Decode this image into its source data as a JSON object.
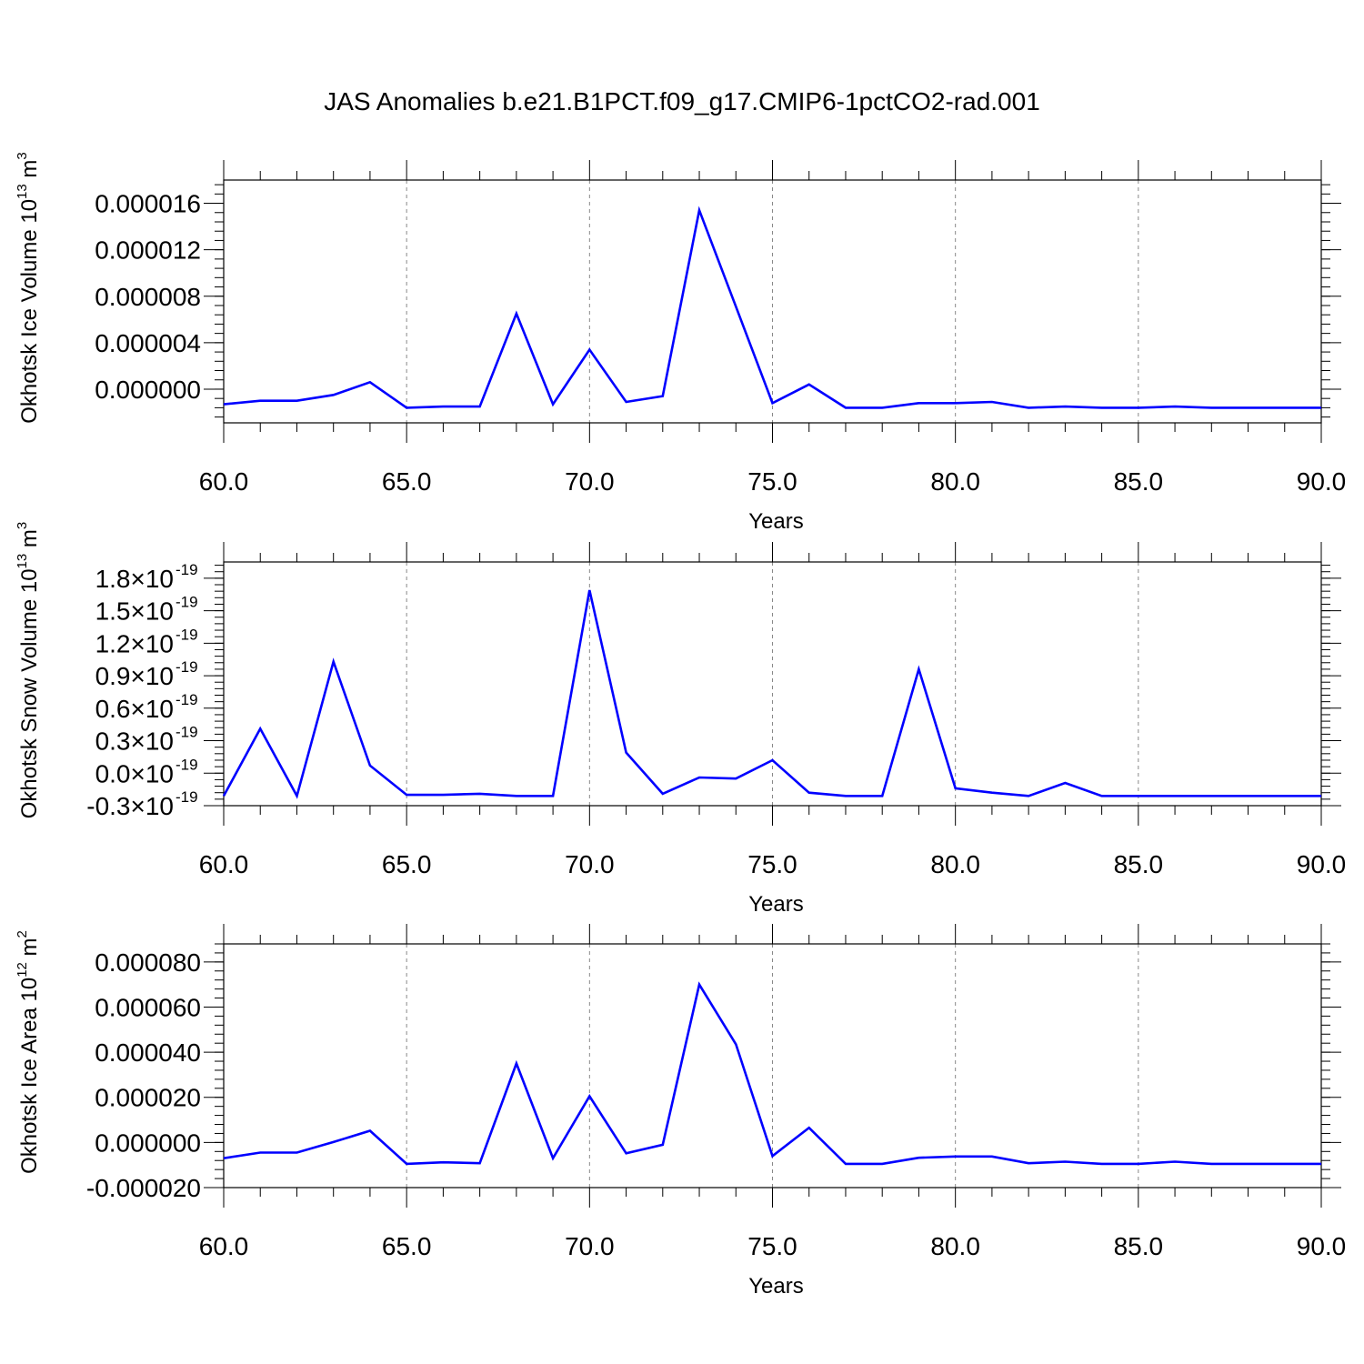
{
  "title": "JAS Anomalies b.e21.B1PCT.f09_g17.CMIP6-1pctCO2-rad.001",
  "line_color": "#0000ff",
  "chart_data": [
    {
      "type": "line",
      "ylabel": "Okhotsk Ice Volume",
      "unit_base": "10",
      "unit_exp": "13",
      "unit_sym": "m",
      "unit_pow": "3",
      "xlabel": "Years",
      "xlim": [
        60,
        90
      ],
      "ylim": [
        -2.9e-06,
        1.8e-05
      ],
      "x_ticks": [
        60,
        65,
        70,
        75,
        80,
        85,
        90
      ],
      "x_tick_labels": [
        "60.0",
        "65.0",
        "70.0",
        "75.0",
        "80.0",
        "85.0",
        "90.0"
      ],
      "y_ticks": [
        0,
        4e-06,
        8e-06,
        1.2e-05,
        1.6e-05
      ],
      "y_tick_labels": [
        "0.000000",
        "0.000004",
        "0.000008",
        "0.000012",
        "0.000016"
      ],
      "y_tick_exps": [],
      "x": [
        60,
        61,
        62,
        63,
        64,
        65,
        66,
        67,
        68,
        69,
        70,
        71,
        72,
        73,
        74,
        75,
        76,
        77,
        78,
        79,
        80,
        81,
        82,
        83,
        84,
        85,
        86,
        87,
        88,
        89,
        90
      ],
      "values": [
        -1.3e-06,
        -1e-06,
        -1e-06,
        -5e-07,
        6e-07,
        -1.6e-06,
        -1.5e-06,
        -1.5e-06,
        6.5e-06,
        -1.3e-06,
        3.4e-06,
        -1.1e-06,
        -6e-07,
        1.54e-05,
        7.1e-06,
        -1.2e-06,
        4e-07,
        -1.6e-06,
        -1.6e-06,
        -1.2e-06,
        -1.2e-06,
        -1.1e-06,
        -1.6e-06,
        -1.5e-06,
        -1.6e-06,
        -1.6e-06,
        -1.5e-06,
        -1.6e-06,
        -1.6e-06,
        -1.6e-06,
        -1.6e-06
      ]
    },
    {
      "type": "line",
      "ylabel": "Okhotsk Snow Volume",
      "unit_base": "10",
      "unit_exp": "13",
      "unit_sym": "m",
      "unit_pow": "3",
      "xlabel": "Years",
      "xlim": [
        60,
        90
      ],
      "ylim": [
        -0.3,
        1.95
      ],
      "x_ticks": [
        60,
        65,
        70,
        75,
        80,
        85,
        90
      ],
      "x_tick_labels": [
        "60.0",
        "65.0",
        "70.0",
        "75.0",
        "80.0",
        "85.0",
        "90.0"
      ],
      "y_ticks": [
        -0.3,
        0.0,
        0.3,
        0.6,
        0.9,
        1.2,
        1.5,
        1.8
      ],
      "y_tick_labels": [
        "-0.3×10",
        "0.0×10",
        "0.3×10",
        "0.6×10",
        "0.9×10",
        "1.2×10",
        "1.5×10",
        "1.8×10"
      ],
      "y_tick_exps": [
        "-19",
        "-19",
        "-19",
        "-19",
        "-19",
        "-19",
        "-19",
        "-19"
      ],
      "x": [
        60,
        61,
        62,
        63,
        64,
        65,
        66,
        67,
        68,
        69,
        70,
        71,
        72,
        73,
        74,
        75,
        76,
        77,
        78,
        79,
        80,
        81,
        82,
        83,
        84,
        85,
        86,
        87,
        88,
        89,
        90
      ],
      "values": [
        -0.21,
        0.41,
        -0.21,
        1.03,
        0.07,
        -0.2,
        -0.2,
        -0.19,
        -0.21,
        -0.21,
        1.69,
        0.19,
        -0.19,
        -0.04,
        -0.05,
        0.12,
        -0.18,
        -0.21,
        -0.21,
        0.96,
        -0.14,
        -0.18,
        -0.21,
        -0.09,
        -0.21,
        -0.21,
        -0.21,
        -0.21,
        -0.21,
        -0.21,
        -0.21
      ]
    },
    {
      "type": "line",
      "ylabel": "Okhotsk Ice Area",
      "unit_base": "10",
      "unit_exp": "12",
      "unit_sym": "m",
      "unit_pow": "2",
      "xlabel": "Years",
      "xlim": [
        60,
        90
      ],
      "ylim": [
        -2e-05,
        8.8e-05
      ],
      "x_ticks": [
        60,
        65,
        70,
        75,
        80,
        85,
        90
      ],
      "x_tick_labels": [
        "60.0",
        "65.0",
        "70.0",
        "75.0",
        "80.0",
        "85.0",
        "90.0"
      ],
      "y_ticks": [
        -2e-05,
        0,
        2e-05,
        4e-05,
        6e-05,
        8e-05
      ],
      "y_tick_labels": [
        "-0.000020",
        "0.000000",
        "0.000020",
        "0.000040",
        "0.000060",
        "0.000080"
      ],
      "y_tick_exps": [],
      "x": [
        60,
        61,
        62,
        63,
        64,
        65,
        66,
        67,
        68,
        69,
        70,
        71,
        72,
        73,
        74,
        75,
        76,
        77,
        78,
        79,
        80,
        81,
        82,
        83,
        84,
        85,
        86,
        87,
        88,
        89,
        90
      ],
      "values": [
        -7e-06,
        -4.5e-06,
        -4.5e-06,
        2e-07,
        5.2e-06,
        -9.5e-06,
        -8.8e-06,
        -9.2e-06,
        3.5e-05,
        -7e-06,
        2.05e-05,
        -4.8e-06,
        -1e-06,
        7e-05,
        4.35e-05,
        -6e-06,
        6.5e-06,
        -9.5e-06,
        -9.5e-06,
        -6.8e-06,
        -6.2e-06,
        -6.2e-06,
        -9.2e-06,
        -8.5e-06,
        -9.5e-06,
        -9.5e-06,
        -8.5e-06,
        -9.5e-06,
        -9.5e-06,
        -9.5e-06,
        -9.5e-06
      ]
    }
  ]
}
